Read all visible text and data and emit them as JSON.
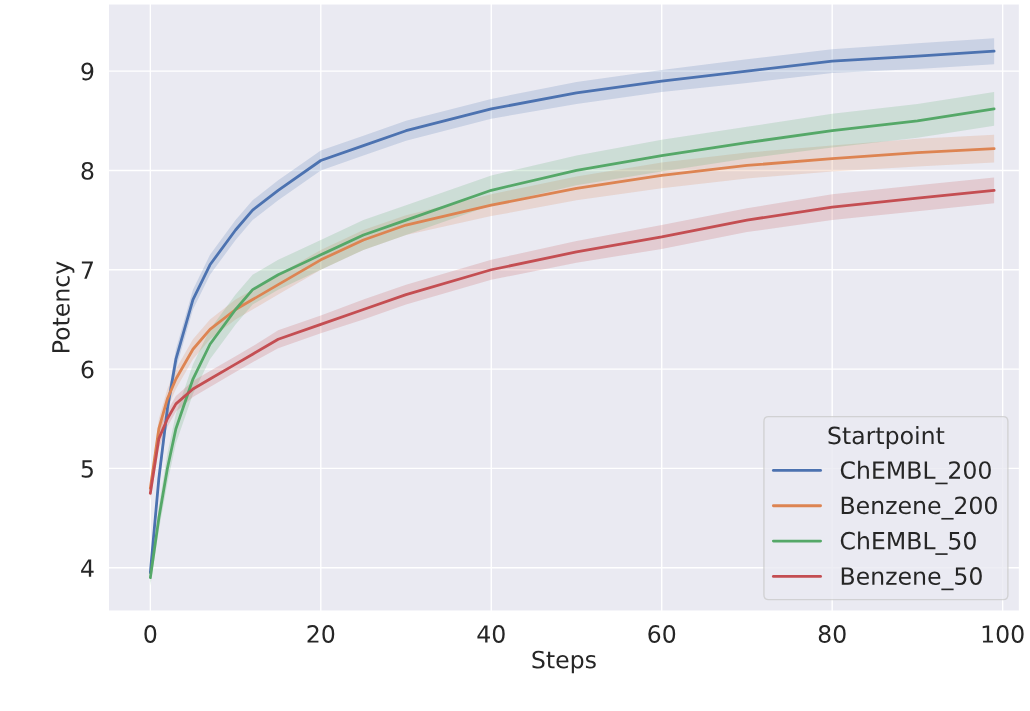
{
  "chart_data": {
    "type": "line",
    "xlabel": "Steps",
    "ylabel": "Potency",
    "legend_title": "Startpoint",
    "legend": "bottom right",
    "grid": true,
    "x": [
      0,
      1,
      2,
      3,
      5,
      7,
      10,
      12,
      15,
      20,
      25,
      30,
      40,
      50,
      60,
      70,
      80,
      90,
      99
    ],
    "xlim": [
      -4.95,
      102
    ],
    "xticks": [
      0,
      20,
      40,
      60,
      80,
      100
    ],
    "ylim": [
      3.56,
      9.68
    ],
    "yticks": [
      4,
      5,
      6,
      7,
      8,
      9
    ],
    "series": [
      {
        "name": "ChEMBL_200",
        "color": "#4c72b0",
        "values": [
          3.95,
          4.9,
          5.6,
          6.1,
          6.7,
          7.05,
          7.4,
          7.6,
          7.8,
          8.1,
          8.25,
          8.4,
          8.62,
          8.78,
          8.9,
          9.0,
          9.1,
          9.15,
          9.2
        ],
        "lower": [
          3.85,
          4.8,
          5.5,
          6.0,
          6.6,
          6.95,
          7.3,
          7.5,
          7.7,
          8.0,
          8.15,
          8.3,
          8.52,
          8.67,
          8.79,
          8.88,
          8.98,
          9.02,
          9.07
        ],
        "upper": [
          4.05,
          5.0,
          5.7,
          6.2,
          6.8,
          7.15,
          7.5,
          7.7,
          7.9,
          8.2,
          8.35,
          8.5,
          8.72,
          8.89,
          9.01,
          9.12,
          9.22,
          9.28,
          9.33
        ]
      },
      {
        "name": "Benzene_200",
        "color": "#dd8452",
        "values": [
          4.8,
          5.4,
          5.7,
          5.9,
          6.2,
          6.4,
          6.6,
          6.7,
          6.85,
          7.1,
          7.3,
          7.45,
          7.65,
          7.82,
          7.95,
          8.05,
          8.12,
          8.18,
          8.22
        ],
        "lower": [
          4.72,
          5.3,
          5.6,
          5.8,
          6.1,
          6.3,
          6.5,
          6.6,
          6.75,
          7.0,
          7.2,
          7.35,
          7.54,
          7.7,
          7.82,
          7.92,
          7.99,
          8.04,
          8.08
        ],
        "upper": [
          4.88,
          5.5,
          5.8,
          6.0,
          6.3,
          6.5,
          6.7,
          6.8,
          6.95,
          7.2,
          7.4,
          7.55,
          7.76,
          7.94,
          8.08,
          8.18,
          8.25,
          8.32,
          8.36
        ]
      },
      {
        "name": "ChEMBL_50",
        "color": "#55a868",
        "values": [
          3.9,
          4.5,
          5.0,
          5.4,
          5.9,
          6.25,
          6.6,
          6.8,
          6.95,
          7.15,
          7.35,
          7.5,
          7.8,
          8.0,
          8.15,
          8.28,
          8.4,
          8.5,
          8.62
        ],
        "lower": [
          3.82,
          4.38,
          4.85,
          5.25,
          5.75,
          6.1,
          6.45,
          6.65,
          6.8,
          7.0,
          7.2,
          7.35,
          7.65,
          7.85,
          7.99,
          8.12,
          8.23,
          8.33,
          8.45
        ],
        "upper": [
          3.98,
          4.62,
          5.15,
          5.55,
          6.05,
          6.4,
          6.75,
          6.95,
          7.1,
          7.3,
          7.5,
          7.65,
          7.95,
          8.15,
          8.31,
          8.44,
          8.57,
          8.67,
          8.79
        ]
      },
      {
        "name": "Benzene_50",
        "color": "#c44e52",
        "values": [
          4.75,
          5.3,
          5.5,
          5.65,
          5.8,
          5.9,
          6.05,
          6.15,
          6.3,
          6.45,
          6.6,
          6.75,
          7.0,
          7.18,
          7.33,
          7.5,
          7.63,
          7.72,
          7.8
        ],
        "lower": [
          4.68,
          5.2,
          5.42,
          5.57,
          5.72,
          5.82,
          5.97,
          6.07,
          6.21,
          6.36,
          6.5,
          6.65,
          6.9,
          7.07,
          7.21,
          7.38,
          7.5,
          7.59,
          7.67
        ],
        "upper": [
          4.82,
          5.4,
          5.58,
          5.73,
          5.88,
          5.98,
          6.13,
          6.23,
          6.39,
          6.54,
          6.7,
          6.85,
          7.1,
          7.29,
          7.45,
          7.62,
          7.76,
          7.85,
          7.93
        ]
      }
    ]
  }
}
